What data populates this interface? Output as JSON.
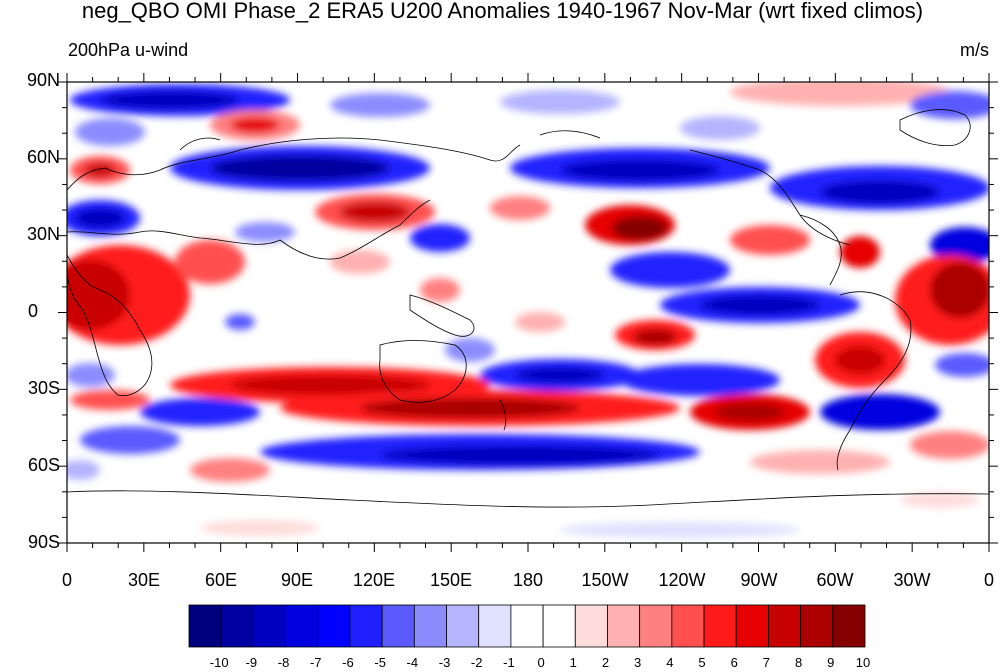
{
  "title": "neg_QBO OMI Phase_2 ERA5 U200 Anomalies 1940-1967 Nov-Mar (wrt fixed climos)",
  "left_subtitle": "200hPa u-wind",
  "right_subtitle": "m/s",
  "lat_labels": [
    "90N",
    "60N",
    "30N",
    "0",
    "30S",
    "60S",
    "90S"
  ],
  "lon_labels": [
    "0",
    "30E",
    "60E",
    "90E",
    "120E",
    "150E",
    "180",
    "150W",
    "120W",
    "90W",
    "60W",
    "30W",
    "0"
  ],
  "colorbar": {
    "labels": [
      "-10",
      "-9",
      "-8",
      "-7",
      "-6",
      "-5",
      "-4",
      "-3",
      "-2",
      "-1",
      "0",
      "1",
      "2",
      "3",
      "4",
      "5",
      "6",
      "7",
      "8",
      "9",
      "10"
    ],
    "colors": [
      "#00007f",
      "#0000a0",
      "#0000c0",
      "#0000e0",
      "#0000ff",
      "#2020ff",
      "#5a5aff",
      "#8c8cff",
      "#b4b4ff",
      "#e0e0ff",
      "#ffffff",
      "#ffffff",
      "#ffdcdc",
      "#ffb0b0",
      "#ff8080",
      "#ff5050",
      "#ff1a1a",
      "#e60000",
      "#c80000",
      "#aa0000",
      "#850000"
    ]
  }
}
